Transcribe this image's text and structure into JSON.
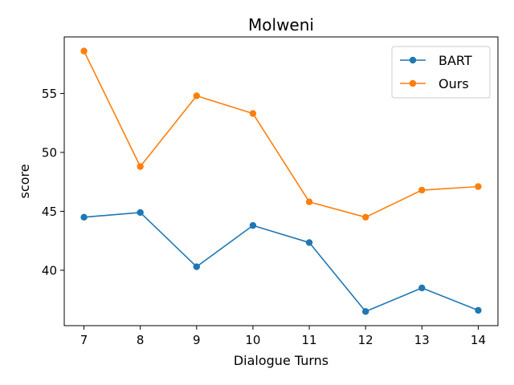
{
  "chart_data": {
    "type": "line",
    "title": "Molweni",
    "xlabel": "Dialogue Turns",
    "ylabel": "score",
    "x": [
      7,
      8,
      9,
      10,
      11,
      12,
      13,
      14
    ],
    "xlim": [
      6.65,
      14.35
    ],
    "ylim": [
      35.3,
      59.8
    ],
    "yticks": [
      40,
      45,
      50,
      55
    ],
    "grid": false,
    "legend_position": "top-right",
    "series": [
      {
        "name": "BART",
        "color": "#1f77b4",
        "marker": "circle",
        "values": [
          44.5,
          44.9,
          40.3,
          43.8,
          42.35,
          36.5,
          38.5,
          36.6
        ]
      },
      {
        "name": "Ours",
        "color": "#ff7f0e",
        "marker": "circle",
        "values": [
          58.6,
          48.8,
          54.8,
          53.3,
          45.8,
          44.5,
          46.8,
          47.1
        ]
      }
    ]
  }
}
